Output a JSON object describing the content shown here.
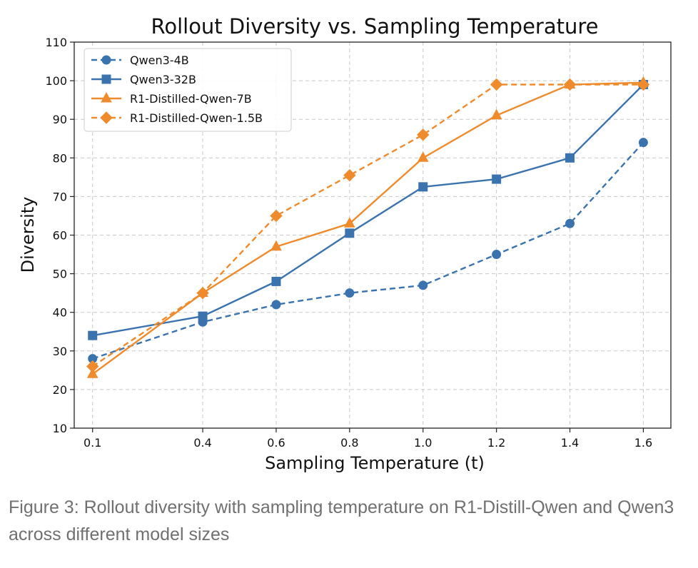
{
  "caption": "Figure 3: Rollout diversity with sampling temperature on R1-Distill-Qwen and Qwen3 across different model sizes",
  "colors": {
    "blue": "#3b73ae",
    "orange": "#ef8b2c"
  },
  "chart_data": {
    "type": "line",
    "title": "Rollout Diversity vs. Sampling Temperature",
    "xlabel": "Sampling Temperature (t)",
    "ylabel": "Diversity",
    "x": [
      0.1,
      0.4,
      0.6,
      0.8,
      1.0,
      1.2,
      1.4,
      1.6
    ],
    "x_tick_labels": [
      "0.1",
      "0.4",
      "0.6",
      "0.8",
      "1.0",
      "1.2",
      "1.4",
      "1.6"
    ],
    "y_ticks": [
      10,
      20,
      30,
      40,
      50,
      60,
      70,
      80,
      90,
      100,
      110
    ],
    "ylim": [
      10,
      110
    ],
    "grid": true,
    "legend_position": "top-left",
    "series": [
      {
        "name": "Qwen3-4B",
        "color": "#3b73ae",
        "dash": true,
        "marker": "circle",
        "values": [
          28,
          37.5,
          42,
          45,
          47,
          55,
          63,
          84
        ]
      },
      {
        "name": "Qwen3-32B",
        "color": "#3b73ae",
        "dash": false,
        "marker": "square",
        "values": [
          34,
          39,
          48,
          60.5,
          72.5,
          74.5,
          80,
          99
        ]
      },
      {
        "name": "R1-Distilled-Qwen-7B",
        "color": "#ef8b2c",
        "dash": false,
        "marker": "triangle",
        "values": [
          24,
          45,
          57,
          63,
          80,
          91,
          99,
          99.5
        ]
      },
      {
        "name": "R1-Distilled-Qwen-1.5B",
        "color": "#ef8b2c",
        "dash": true,
        "marker": "diamond",
        "values": [
          26,
          45,
          65,
          75.5,
          86,
          99,
          99,
          99
        ]
      }
    ]
  }
}
